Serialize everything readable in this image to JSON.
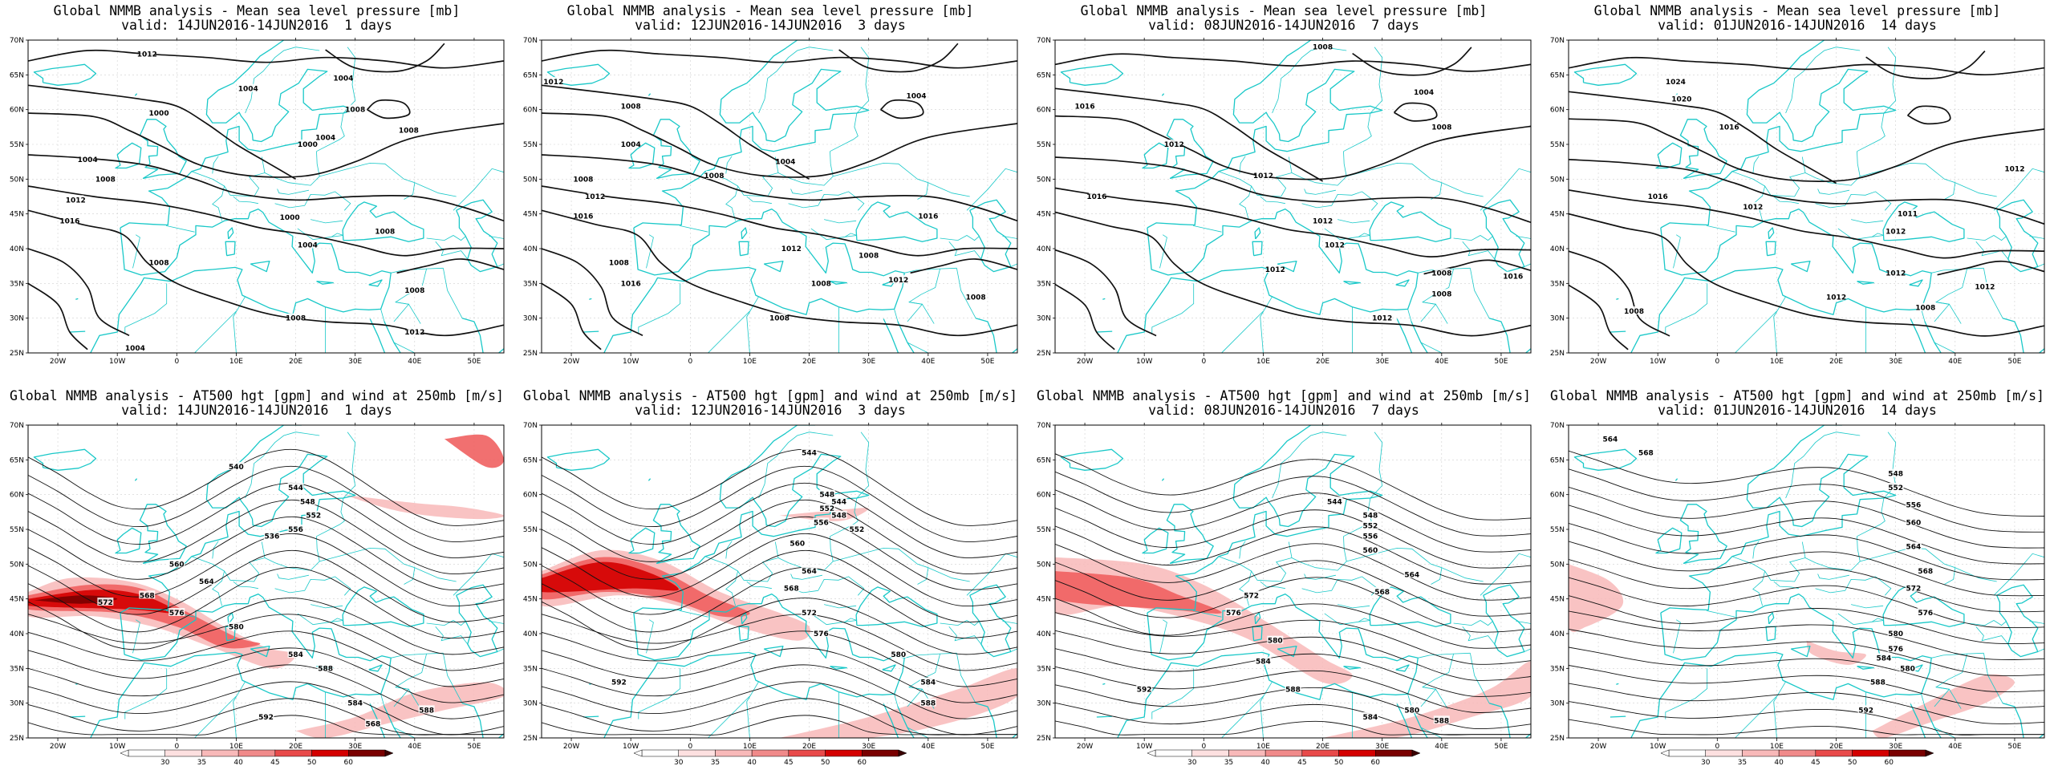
{
  "panels": [
    {
      "title1": "Global NMMB analysis - Mean sea level pressure [mb]",
      "title2": "valid: 14JUN2016-14JUN2016  1 days",
      "labels": [
        "1012",
        "1004",
        "1000",
        "1008",
        "1004",
        "1000",
        "1004",
        "1008",
        "1012",
        "1016",
        "1008",
        "1000",
        "1004",
        "1008",
        "1004",
        "1012",
        "1008",
        "1008",
        "1004",
        "1008"
      ],
      "kind": "mslp",
      "days": 1
    },
    {
      "title1": "Global NMMB analysis - Mean sea level pressure [mb]",
      "title2": "valid: 12JUN2016-14JUN2016  3 days",
      "labels": [
        "1012",
        "1008",
        "1004",
        "1008",
        "1004",
        "1004",
        "1008",
        "1012",
        "1016",
        "1008",
        "1016",
        "1012",
        "1008",
        "1012",
        "1008",
        "1008",
        "1008",
        "1016"
      ],
      "kind": "mslp",
      "days": 3
    },
    {
      "title1": "Global NMMB analysis - Mean sea level pressure [mb]",
      "title2": "valid: 08JUN2016-14JUN2016  7 days",
      "labels": [
        "1008",
        "1004",
        "1016",
        "1012",
        "1008",
        "1012",
        "1016",
        "1012",
        "1012",
        "1012",
        "1008",
        "1008",
        "1012",
        "1016"
      ],
      "kind": "mslp",
      "days": 7
    },
    {
      "title1": "Global NMMB analysis - Mean sea level pressure [mb]",
      "title2": "valid: 01JUN2016-14JUN2016  14 days",
      "labels": [
        "1024",
        "1020",
        "1016",
        "1012",
        "1016",
        "1012",
        "1011",
        "1012",
        "1012",
        "1008",
        "1012",
        "1012",
        "1008"
      ],
      "kind": "mslp",
      "days": 14
    },
    {
      "title1": "Global NMMB analysis - AT500 hgt [gpm] and wind at 250mb [m/s]",
      "title2": "valid: 14JUN2016-14JUN2016  1 days",
      "labels": [
        "540",
        "544",
        "548",
        "552",
        "556",
        "536",
        "560",
        "564",
        "568",
        "572",
        "576",
        "580",
        "584",
        "588",
        "592",
        "584",
        "588",
        "568"
      ],
      "kind": "z500",
      "days": 1
    },
    {
      "title1": "Global NMMB analysis - AT500 hgt [gpm] and wind at 250mb [m/s]",
      "title2": "valid: 12JUN2016-14JUN2016  3 days",
      "labels": [
        "544",
        "548",
        "552",
        "556",
        "560",
        "564",
        "568",
        "572",
        "576",
        "580",
        "584",
        "588",
        "592",
        "544",
        "548",
        "552"
      ],
      "kind": "z500",
      "days": 3
    },
    {
      "title1": "Global NMMB analysis - AT500 hgt [gpm] and wind at 250mb [m/s]",
      "title2": "valid: 08JUN2016-14JUN2016  7 days",
      "labels": [
        "544",
        "548",
        "552",
        "556",
        "560",
        "564",
        "568",
        "572",
        "576",
        "580",
        "584",
        "588",
        "592",
        "580",
        "584",
        "588"
      ],
      "kind": "z500",
      "days": 7
    },
    {
      "title1": "Global NMMB analysis - AT500 hgt [gpm] and wind at 250mb [m/s]",
      "title2": "valid: 01JUN2016-14JUN2016  14 days",
      "labels": [
        "564",
        "568",
        "548",
        "552",
        "556",
        "560",
        "564",
        "568",
        "572",
        "576",
        "580",
        "584",
        "588",
        "592",
        "576",
        "580"
      ],
      "kind": "z500",
      "days": 14
    }
  ],
  "axes": {
    "lon_labels": [
      "20W",
      "10W",
      "0",
      "10E",
      "20E",
      "30E",
      "40E",
      "50E"
    ],
    "lat_labels": [
      "70N",
      "65N",
      "60N",
      "55N",
      "50N",
      "45N",
      "40N",
      "35N",
      "30N",
      "25N"
    ]
  },
  "colorbar": {
    "labels": [
      "30",
      "35",
      "40",
      "45",
      "50",
      "60"
    ]
  },
  "colors": {
    "coast": "#19c8c8",
    "contour": "#111111",
    "jet_light": "#f8b9b9",
    "jet_mid": "#f06060",
    "jet_dark": "#d40000",
    "jet_core": "#7a0000"
  }
}
